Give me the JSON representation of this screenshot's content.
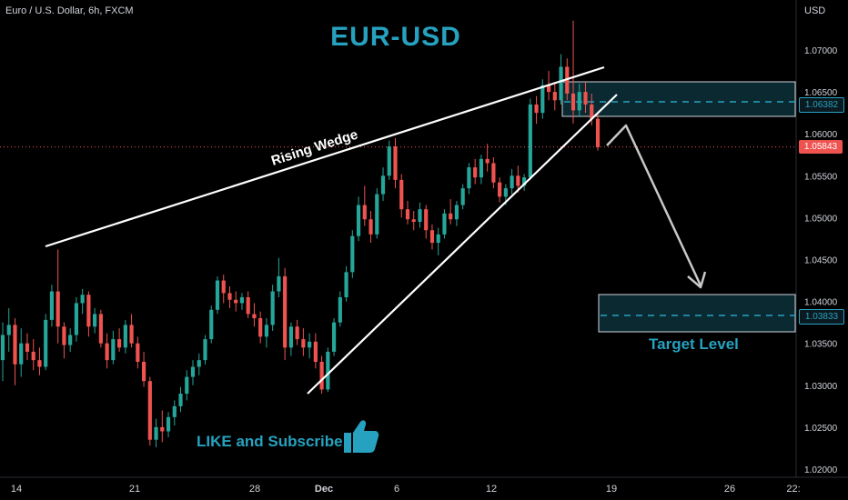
{
  "header": {
    "symbol_legend": "Euro / U.S. Dollar, 6h, FXCM",
    "currency": "USD"
  },
  "annotations": {
    "title": "EUR-USD",
    "pattern_label": "Rising Wedge",
    "cta": "LIKE and Subscribe",
    "target_label": "Target Level"
  },
  "price_badges": {
    "zone_mid": "1.06382",
    "current": "1.05843",
    "target": "1.03833"
  },
  "colors": {
    "up": "#26a69a",
    "down": "#ef5350",
    "accent": "#26a2c0",
    "current_badge": "#ef5350",
    "zone_badge": "#26a2c0"
  },
  "icons": {
    "thumbs_up": "thumbs-up-icon"
  },
  "chart_data": {
    "type": "candlestick",
    "title": "EUR-USD",
    "y_axis": {
      "ticks": [
        "1.07000",
        "1.06500",
        "1.06000",
        "1.05500",
        "1.05000",
        "1.04500",
        "1.04000",
        "1.03500",
        "1.03000",
        "1.02500",
        "1.02000"
      ],
      "range": [
        1.0188,
        1.074
      ]
    },
    "x_axis": {
      "ticks": [
        "14",
        "21",
        "28",
        "Dec",
        "6",
        "12",
        "19",
        "26",
        "22:"
      ]
    },
    "candles": [
      [
        1.033,
        1.0375,
        1.0305,
        1.036
      ],
      [
        1.036,
        1.0392,
        1.034,
        1.0372
      ],
      [
        1.0372,
        1.038,
        1.03,
        1.0325
      ],
      [
        1.0325,
        1.0368,
        1.031,
        1.035
      ],
      [
        1.035,
        1.0362,
        1.033,
        1.034
      ],
      [
        1.034,
        1.0355,
        1.0318,
        1.033
      ],
      [
        1.033,
        1.0345,
        1.0312,
        1.0322
      ],
      [
        1.0322,
        1.0385,
        1.0318,
        1.0378
      ],
      [
        1.0378,
        1.042,
        1.037,
        1.0412
      ],
      [
        1.0412,
        1.0462,
        1.035,
        1.037
      ],
      [
        1.037,
        1.0375,
        1.0332,
        1.0348
      ],
      [
        1.0348,
        1.0368,
        1.034,
        1.036
      ],
      [
        1.036,
        1.0405,
        1.0352,
        1.0398
      ],
      [
        1.0398,
        1.0415,
        1.0385,
        1.0408
      ],
      [
        1.0408,
        1.0412,
        1.0358,
        1.037
      ],
      [
        1.037,
        1.0392,
        1.0362,
        1.0385
      ],
      [
        1.0385,
        1.039,
        1.0345,
        1.035
      ],
      [
        1.035,
        1.0362,
        1.032,
        1.033
      ],
      [
        1.033,
        1.0365,
        1.0325,
        1.0355
      ],
      [
        1.0355,
        1.0368,
        1.034,
        1.0345
      ],
      [
        1.0345,
        1.0378,
        1.0338,
        1.0372
      ],
      [
        1.0372,
        1.0385,
        1.0345,
        1.035
      ],
      [
        1.035,
        1.0358,
        1.032,
        1.0328
      ],
      [
        1.0328,
        1.034,
        1.0298,
        1.0305
      ],
      [
        1.0305,
        1.031,
        1.0228,
        1.0235
      ],
      [
        1.0235,
        1.026,
        1.0226,
        1.025
      ],
      [
        1.025,
        1.027,
        1.0232,
        1.0245
      ],
      [
        1.0245,
        1.0268,
        1.0238,
        1.0262
      ],
      [
        1.0262,
        1.0282,
        1.0252,
        1.0275
      ],
      [
        1.0275,
        1.0298,
        1.0268,
        1.029
      ],
      [
        1.029,
        1.0318,
        1.0282,
        1.031
      ],
      [
        1.031,
        1.033,
        1.03,
        1.0322
      ],
      [
        1.0322,
        1.0338,
        1.0312,
        1.033
      ],
      [
        1.033,
        1.036,
        1.0325,
        1.0355
      ],
      [
        1.0355,
        1.0395,
        1.035,
        1.039
      ],
      [
        1.039,
        1.043,
        1.0385,
        1.0425
      ],
      [
        1.0425,
        1.0432,
        1.0398,
        1.041
      ],
      [
        1.041,
        1.0418,
        1.0392,
        1.0402
      ],
      [
        1.0402,
        1.0412,
        1.0388,
        1.0398
      ],
      [
        1.0398,
        1.041,
        1.039,
        1.0405
      ],
      [
        1.0405,
        1.0412,
        1.038,
        1.0385
      ],
      [
        1.0385,
        1.0398,
        1.037,
        1.038
      ],
      [
        1.038,
        1.0388,
        1.035,
        1.0358
      ],
      [
        1.0358,
        1.038,
        1.0345,
        1.0372
      ],
      [
        1.0372,
        1.042,
        1.0365,
        1.0412
      ],
      [
        1.0412,
        1.0452,
        1.0405,
        1.043
      ],
      [
        1.043,
        1.044,
        1.033,
        1.0345
      ],
      [
        1.0345,
        1.0375,
        1.0335,
        1.037
      ],
      [
        1.037,
        1.0378,
        1.0348,
        1.0355
      ],
      [
        1.0355,
        1.0368,
        1.0335,
        1.0345
      ],
      [
        1.0345,
        1.0362,
        1.0332,
        1.0352
      ],
      [
        1.0352,
        1.0362,
        1.032,
        1.0328
      ],
      [
        1.0328,
        1.0335,
        1.029,
        1.0295
      ],
      [
        1.0295,
        1.0345,
        1.0292,
        1.034
      ],
      [
        1.034,
        1.038,
        1.0335,
        1.0375
      ],
      [
        1.0375,
        1.0412,
        1.037,
        1.0405
      ],
      [
        1.0405,
        1.0442,
        1.04,
        1.0435
      ],
      [
        1.0435,
        1.0485,
        1.0428,
        1.0478
      ],
      [
        1.0478,
        1.0525,
        1.0472,
        1.0515
      ],
      [
        1.0515,
        1.0538,
        1.049,
        1.0498
      ],
      [
        1.0498,
        1.0508,
        1.047,
        1.048
      ],
      [
        1.048,
        1.0535,
        1.0475,
        1.0528
      ],
      [
        1.0528,
        1.056,
        1.052,
        1.055
      ],
      [
        1.055,
        1.0592,
        1.0545,
        1.0585
      ],
      [
        1.0585,
        1.0595,
        1.0535,
        1.0545
      ],
      [
        1.0545,
        1.0552,
        1.05,
        1.051
      ],
      [
        1.051,
        1.052,
        1.0492,
        1.0498
      ],
      [
        1.0498,
        1.0508,
        1.0485,
        1.0495
      ],
      [
        1.0495,
        1.0518,
        1.0488,
        1.051
      ],
      [
        1.051,
        1.0515,
        1.0475,
        1.0485
      ],
      [
        1.0485,
        1.0492,
        1.0462,
        1.047
      ],
      [
        1.047,
        1.0488,
        1.0455,
        1.048
      ],
      [
        1.048,
        1.051,
        1.0475,
        1.0505
      ],
      [
        1.0505,
        1.0522,
        1.0492,
        1.0498
      ],
      [
        1.0498,
        1.052,
        1.049,
        1.0515
      ],
      [
        1.0515,
        1.054,
        1.051,
        1.0535
      ],
      [
        1.0535,
        1.0565,
        1.0528,
        1.056
      ],
      [
        1.056,
        1.057,
        1.054,
        1.0548
      ],
      [
        1.0548,
        1.0575,
        1.054,
        1.057
      ],
      [
        1.057,
        1.0588,
        1.0555,
        1.0565
      ],
      [
        1.0565,
        1.0572,
        1.0535,
        1.0542
      ],
      [
        1.0542,
        1.0548,
        1.0518,
        1.0525
      ],
      [
        1.0525,
        1.054,
        1.0515,
        1.0535
      ],
      [
        1.0535,
        1.0558,
        1.0528,
        1.055
      ],
      [
        1.055,
        1.0562,
        1.053,
        1.0538
      ],
      [
        1.0538,
        1.0552,
        1.0532,
        1.0548
      ],
      [
        1.0548,
        1.0642,
        1.0545,
        1.0635
      ],
      [
        1.0635,
        1.0645,
        1.0612,
        1.0625
      ],
      [
        1.0625,
        1.0665,
        1.0618,
        1.0658
      ],
      [
        1.0658,
        1.0675,
        1.064,
        1.065
      ],
      [
        1.065,
        1.0662,
        1.0628,
        1.064
      ],
      [
        1.064,
        1.0695,
        1.0635,
        1.068
      ],
      [
        1.068,
        1.069,
        1.064,
        1.0648
      ],
      [
        1.0648,
        1.0735,
        1.0612,
        1.0628
      ],
      [
        1.0628,
        1.066,
        1.062,
        1.065
      ],
      [
        1.065,
        1.0662,
        1.0625,
        1.0635
      ],
      [
        1.0635,
        1.0648,
        1.061,
        1.0618
      ],
      [
        1.0618,
        1.0625,
        1.058,
        1.0584
      ]
    ]
  }
}
